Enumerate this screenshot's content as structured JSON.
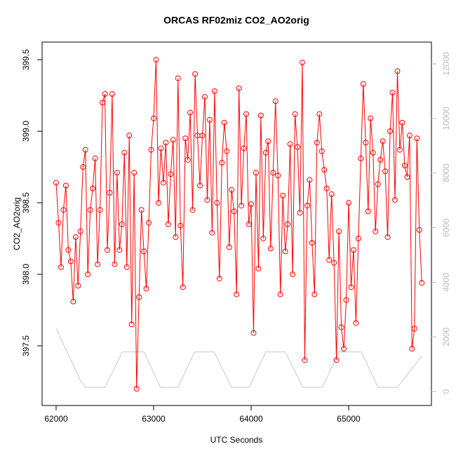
{
  "chart_data": {
    "type": "line",
    "title": "ORCAS RF02miz CO2_AO2orig",
    "x_label": "UTC Seconds",
    "y_label": "CO2_AO2orig",
    "xlim": [
      61856,
      65849
    ],
    "ylim": [
      397.083,
      399.623
    ],
    "y2lim": [
      -514,
      12797
    ],
    "xticks": [
      62000,
      63000,
      64000,
      65000
    ],
    "yticks": [
      397.5,
      {
        "value": 398,
        "label": "398.0"
      },
      398.5,
      {
        "value": 399,
        "label": "399.0"
      },
      399.5
    ],
    "y2ticks": [
      0,
      2000,
      4000,
      6000,
      8000,
      10000,
      12000
    ],
    "series": [
      {
        "color": "#ff0000",
        "markers": true,
        "axis": "y",
        "x": [
          62000,
          62025,
          62050,
          62075,
          62100,
          62125,
          62150,
          62175,
          62200,
          62225,
          62250,
          62275,
          62300,
          62325,
          62350,
          62375,
          62400,
          62425,
          62450,
          62475,
          62500,
          62525,
          62550,
          62575,
          62600,
          62625,
          62650,
          62675,
          62700,
          62725,
          62750,
          62775,
          62800,
          62825,
          62850,
          62875,
          62900,
          62925,
          62950,
          62975,
          63000,
          63025,
          63050,
          63075,
          63100,
          63125,
          63150,
          63175,
          63200,
          63225,
          63250,
          63275,
          63300,
          63325,
          63350,
          63375,
          63400,
          63425,
          63450,
          63475,
          63500,
          63525,
          63550,
          63575,
          63600,
          63625,
          63650,
          63675,
          63700,
          63725,
          63750,
          63775,
          63800,
          63825,
          63850,
          63875,
          63900,
          63925,
          63950,
          63975,
          64000,
          64025,
          64050,
          64075,
          64100,
          64125,
          64150,
          64175,
          64200,
          64225,
          64250,
          64275,
          64300,
          64325,
          64350,
          64375,
          64400,
          64425,
          64450,
          64475,
          64500,
          64525,
          64550,
          64575,
          64600,
          64625,
          64650,
          64675,
          64700,
          64725,
          64750,
          64775,
          64800,
          64825,
          64850,
          64875,
          64900,
          64925,
          64950,
          64975,
          65000,
          65025,
          65050,
          65075,
          65100,
          65125,
          65150,
          65175,
          65200,
          65225,
          65250,
          65275,
          65300,
          65325,
          65350,
          65375,
          65400,
          65425,
          65450,
          65475,
          65500,
          65525,
          65550,
          65575,
          65600,
          65625,
          65650,
          65675,
          65700,
          65725,
          65750
        ],
        "values": [
          398.64,
          398.36,
          398.05,
          398.45,
          398.62,
          398.17,
          398.09,
          397.81,
          398.26,
          397.92,
          398.3,
          398.75,
          398.87,
          398.0,
          398.45,
          398.6,
          398.81,
          398.07,
          398.45,
          399.2,
          399.26,
          398.17,
          398.57,
          399.26,
          398.07,
          398.71,
          398.17,
          398.35,
          398.85,
          398.05,
          398.97,
          397.65,
          398.71,
          397.2,
          397.84,
          398.45,
          398.16,
          397.9,
          398.36,
          398.87,
          399.09,
          399.5,
          398.5,
          398.88,
          398.64,
          398.92,
          398.35,
          398.7,
          398.94,
          398.26,
          399.37,
          398.34,
          397.91,
          398.95,
          398.8,
          399.13,
          398.45,
          399.4,
          398.97,
          398.62,
          398.97,
          399.24,
          398.52,
          399.08,
          398.29,
          399.28,
          398.5,
          397.97,
          398.78,
          399.06,
          398.86,
          398.19,
          398.59,
          398.44,
          397.86,
          399.3,
          398.48,
          398.88,
          399.12,
          398.35,
          398.49,
          397.59,
          398.71,
          398.04,
          399.11,
          398.25,
          398.85,
          398.93,
          398.18,
          398.71,
          399.21,
          398.69,
          397.86,
          398.55,
          398.16,
          398.35,
          398.91,
          398.0,
          399.12,
          398.89,
          398.43,
          399.48,
          397.4,
          398.48,
          398.66,
          398.22,
          397.86,
          398.92,
          399.12,
          398.86,
          398.73,
          398.6,
          398.1,
          398.56,
          398.08,
          397.4,
          398.3,
          397.63,
          397.48,
          397.82,
          398.5,
          397.91,
          398.17,
          397.66,
          398.25,
          398.81,
          399.33,
          398.92,
          398.44,
          399.09,
          398.85,
          398.3,
          398.63,
          398.8,
          398.93,
          398.72,
          398.26,
          399.0,
          399.27,
          398.52,
          399.42,
          398.87,
          399.06,
          398.76,
          398.68,
          398.97,
          397.48,
          397.62,
          398.95,
          398.31,
          397.94
        ]
      },
      {
        "color": "#c8c8c8",
        "markers": false,
        "axis": "y2",
        "x": [
          62000,
          62250,
          62300,
          62500,
          62680,
          62900,
          63070,
          63250,
          63420,
          63620,
          63800,
          63980,
          64150,
          64350,
          64530,
          64730,
          64900,
          65130,
          65300,
          65500,
          65750
        ],
        "values": [
          2300,
          400,
          150,
          150,
          1450,
          1450,
          150,
          150,
          1450,
          1450,
          150,
          150,
          1450,
          1450,
          150,
          150,
          1450,
          1450,
          150,
          150,
          1300
        ]
      }
    ]
  }
}
